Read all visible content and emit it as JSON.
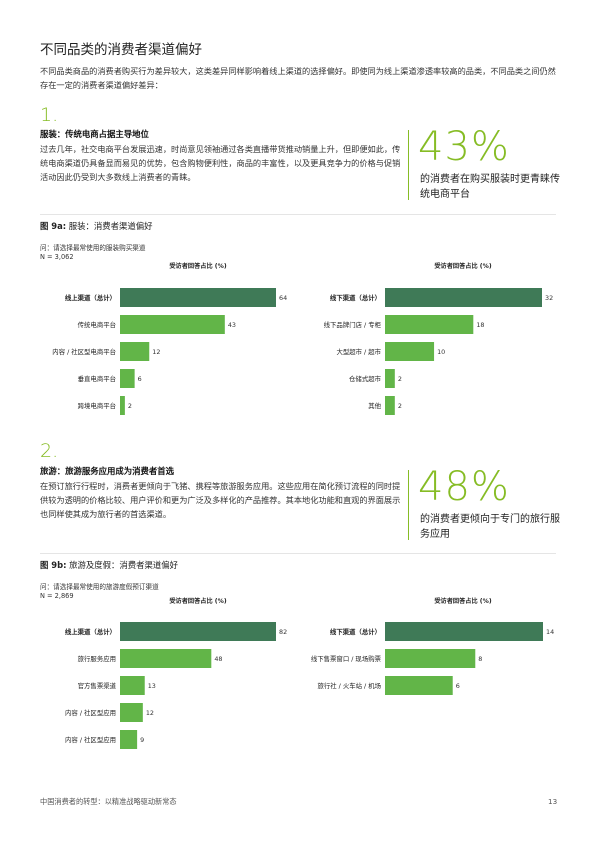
{
  "page": {
    "title": "不同品类的消费者渠道偏好",
    "intro": "不同品类商品的消费者购买行为差异较大，这类差异同样影响着线上渠道的选择偏好。即使同为线上渠道渗透率较高的品类，不同品类之间仍然存在一定的消费者渠道偏好差异：",
    "footer": "中国消费者的转型：以精准战略驱动新常态",
    "page_number": "13"
  },
  "section1": {
    "number": "1.",
    "heading": "服装：传统电商占据主导地位",
    "body": "过去几年，社交电商平台发展迅速，时尚意见领袖通过各类直播带货推动销量上升，但即便如此，传统电商渠道仍具备显而易见的优势，包含购物便利性，商品的丰富性，以及更具竞争力的价格与促销活动因此仍受到大多数线上消费者的青睐。",
    "stat_value": "43%",
    "stat_caption": "的消费者在购买服装时更青睐传统电商平台"
  },
  "figure9a": {
    "label": "图 9a:",
    "title": "服装：消费者渠道偏好",
    "question": "问：请选择最常使用的服装购买渠道",
    "n": "N = 3,062"
  },
  "section2": {
    "number": "2.",
    "heading": "旅游：旅游服务应用成为消费者首选",
    "body": "在预订旅行行程时，消费者更倾向于飞猪、携程等旅游服务应用。这些应用在简化预订流程的同时提供较为透明的价格比较、用户评价和更为广泛及多样化的产品推荐。其本地化功能和直观的界面展示也同样使其成为旅行者的首选渠道。",
    "stat_value": "48%",
    "stat_caption": "的消费者更倾向于专门的旅行服务应用"
  },
  "figure9b": {
    "label": "图 9b:",
    "title": "旅游及度假：消费者渠道偏好",
    "question": "问：请选择最常使用的旅游度假预订渠道",
    "n": "N = 2,869"
  },
  "colors": {
    "accent_green": "#86bc25",
    "total_bar": "#3f7a57",
    "item_bar": "#62b548"
  },
  "chart_data": [
    {
      "type": "bar",
      "orientation": "horizontal",
      "axis_title": "受访者回答占比 (%)",
      "categories": [
        "线上渠道（总计）",
        "传统电商平台",
        "内容 / 社区型电商平台",
        "垂直电商平台",
        "跨境电商平台"
      ],
      "values": [
        64,
        43,
        12,
        6,
        2
      ],
      "total_index": 0
    },
    {
      "type": "bar",
      "orientation": "horizontal",
      "axis_title": "受访者回答占比 (%)",
      "categories": [
        "线下渠道（总计）",
        "线下品牌门店 / 专柜",
        "大型超市 / 超市",
        "仓储式超市",
        "其他"
      ],
      "values": [
        32,
        18,
        10,
        2,
        2
      ],
      "total_index": 0
    },
    {
      "type": "bar",
      "orientation": "horizontal",
      "axis_title": "受访者回答占比 (%)",
      "categories": [
        "线上渠道（总计）",
        "旅行服务应用",
        "官方售票渠道",
        "内容 / 社区型应用",
        "内容 / 社区型应用"
      ],
      "values": [
        82,
        48,
        13,
        12,
        9
      ],
      "total_index": 0
    },
    {
      "type": "bar",
      "orientation": "horizontal",
      "axis_title": "受访者回答占比 (%)",
      "categories": [
        "线下渠道（总计）",
        "线下售票窗口 / 现场购票",
        "旅行社 / 火车站 / 机场"
      ],
      "values": [
        14,
        8,
        6
      ],
      "total_index": 0
    }
  ]
}
